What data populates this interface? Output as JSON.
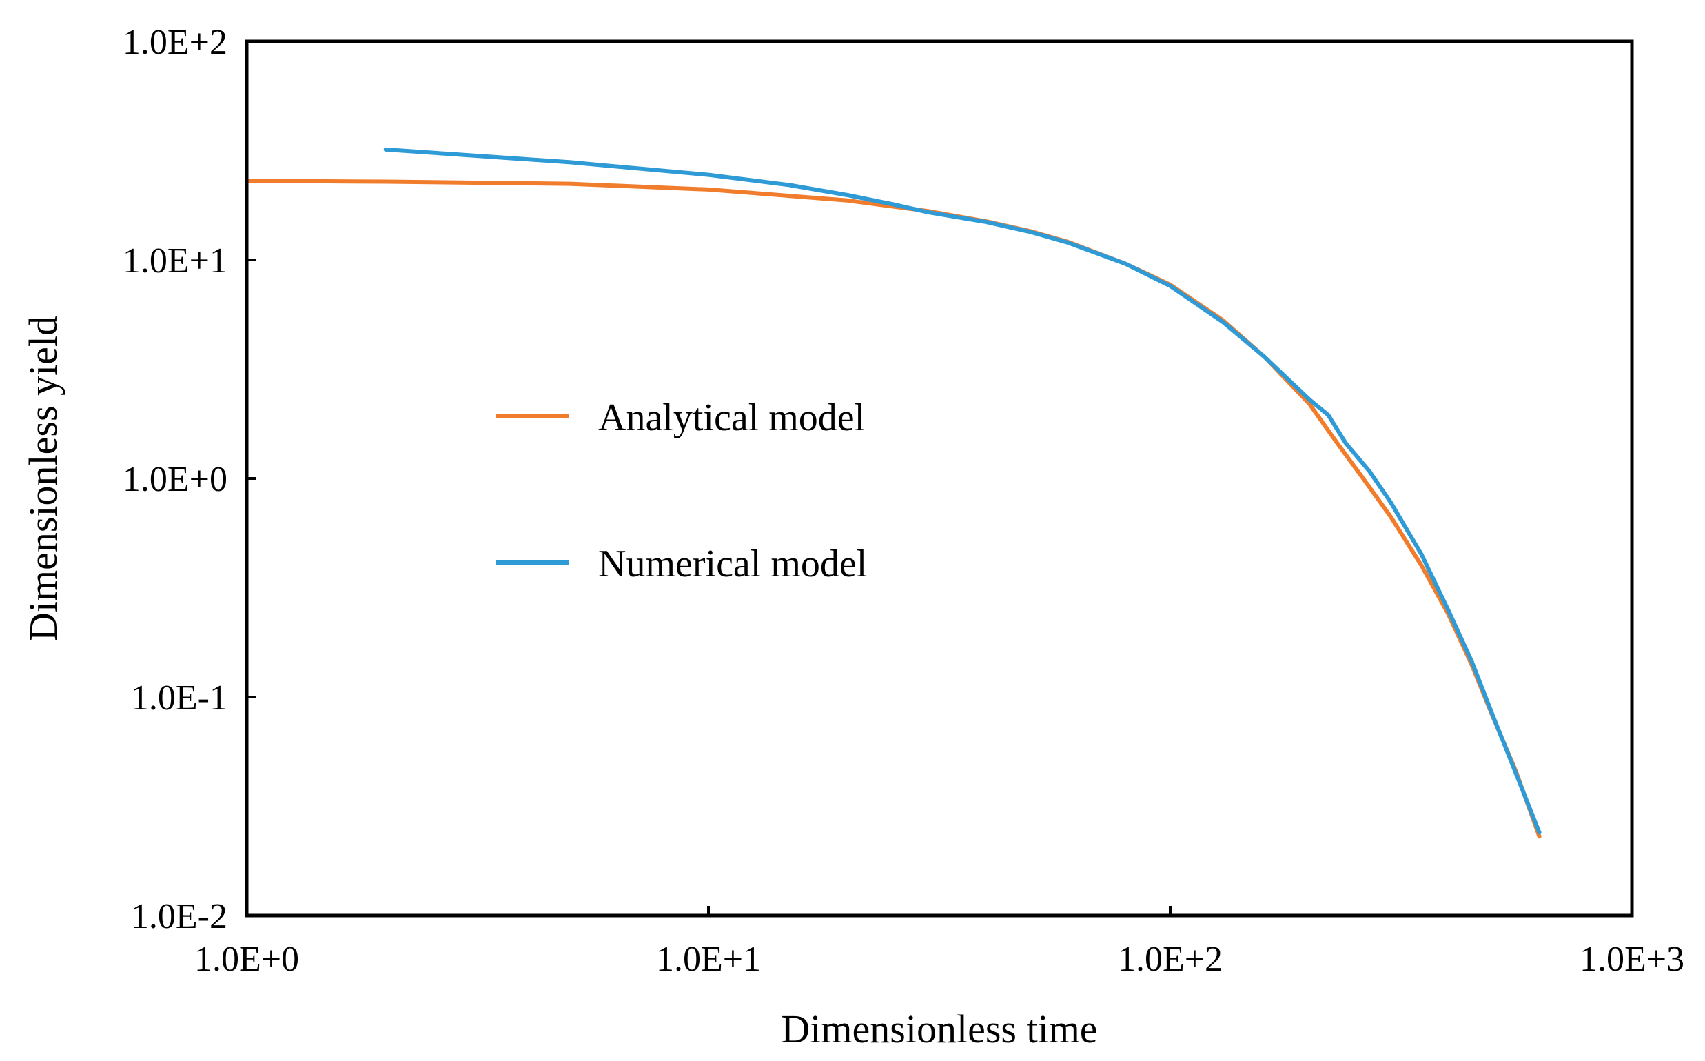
{
  "chart_data": {
    "type": "line",
    "scale": {
      "x": "log",
      "y": "log"
    },
    "xlabel": "Dimensionless time",
    "ylabel": "Dimensionless yield",
    "xlim": [
      1,
      1000
    ],
    "ylim": [
      0.01,
      100
    ],
    "x_tick_values": [
      1,
      10,
      100,
      1000
    ],
    "x_tick_labels": [
      "1.0E+0",
      "1.0E+1",
      "1.0E+2",
      "1.0E+3"
    ],
    "y_tick_values": [
      100,
      10,
      1,
      0.1,
      0.01
    ],
    "y_tick_labels": [
      "1.0E+2",
      "1.0E+1",
      "1.0E+0",
      "1.0E-1",
      "1.0E-2"
    ],
    "grid": false,
    "legend_position": "center-left",
    "series": [
      {
        "name": "Analytical model",
        "color": "#F07C2C",
        "x": [
          1.0,
          2.0,
          5.0,
          10.0,
          20.0,
          30.0,
          40.0,
          50.0,
          60.0,
          80.0,
          100.0,
          130.0,
          160.0,
          200.0,
          230.0,
          260.0,
          300.0,
          350.0,
          400.0,
          450.0,
          500.0,
          560.0,
          630.0
        ],
        "y": [
          23.0,
          22.8,
          22.3,
          21.0,
          18.7,
          16.7,
          15.0,
          13.5,
          12.1,
          9.6,
          7.7,
          5.3,
          3.6,
          2.2,
          1.45,
          1.02,
          0.67,
          0.4,
          0.24,
          0.14,
          0.081,
          0.046,
          0.023
        ]
      },
      {
        "name": "Numerical model",
        "color": "#2E9AD6",
        "x": [
          2.0,
          5.0,
          10.0,
          15.0,
          20.0,
          25.0,
          30.0,
          40.0,
          50.0,
          60.0,
          80.0,
          100.0,
          130.0,
          160.0,
          200.0,
          220.0,
          240.0,
          270.0,
          300.0,
          350.0,
          400.0,
          450.0,
          500.0,
          560.0,
          630.0
        ],
        "y": [
          32.0,
          28.0,
          24.5,
          22.0,
          19.8,
          18.0,
          16.5,
          14.9,
          13.4,
          12.0,
          9.6,
          7.6,
          5.2,
          3.6,
          2.3,
          1.95,
          1.45,
          1.08,
          0.78,
          0.45,
          0.25,
          0.145,
          0.082,
          0.045,
          0.024
        ]
      }
    ]
  }
}
